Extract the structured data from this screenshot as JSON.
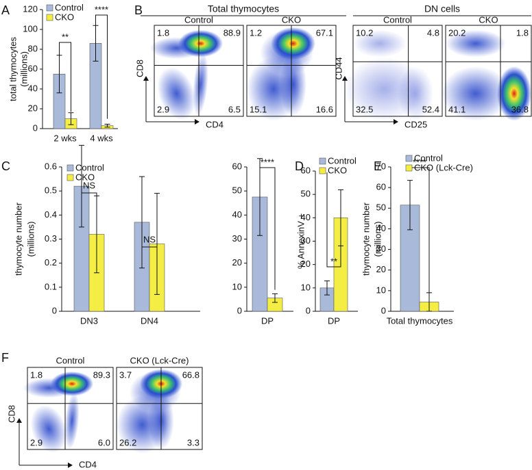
{
  "panels": [
    "A",
    "B",
    "C",
    "D",
    "E",
    "F"
  ],
  "chart_data": [
    {
      "type": "bar",
      "ylabel": [
        "total thymocytes",
        "(millions)"
      ],
      "categories": [
        "2 wks",
        "4 wks"
      ],
      "series": [
        {
          "name": "Control",
          "color": "#a9b9da",
          "values": [
            55,
            86
          ],
          "errors": [
            19,
            18
          ]
        },
        {
          "name": "CKO",
          "color": "#f4ee44",
          "values": [
            10,
            3
          ],
          "errors": [
            6,
            1.5
          ]
        }
      ],
      "ylim": [
        0,
        120
      ],
      "yticks": [
        0,
        20,
        40,
        60,
        80,
        100,
        120
      ],
      "annotations": [
        "**",
        "****"
      ]
    },
    {
      "type": "bar",
      "ylabel": [
        "thymocyte number",
        "(millions)"
      ],
      "categories": [
        "DN3",
        "DN4"
      ],
      "series": [
        {
          "name": "Control",
          "color": "#a9b9da",
          "values": [
            0.52,
            0.37
          ],
          "errors": [
            0.17,
            0.19
          ]
        },
        {
          "name": "CKO",
          "color": "#f4ee44",
          "values": [
            0.32,
            0.28
          ],
          "errors": [
            0.16,
            0.21
          ]
        }
      ],
      "ylim": [
        0,
        0.6
      ],
      "yticks": [
        0,
        0.1,
        0.2,
        0.3,
        0.4,
        0.5,
        0.6
      ],
      "annotations": [
        "NS",
        "NS"
      ]
    },
    {
      "type": "bar",
      "categories": [
        "DP"
      ],
      "series": [
        {
          "color": "#a9b9da",
          "values": [
            47.5
          ],
          "errors": [
            16
          ]
        },
        {
          "color": "#f4ee44",
          "values": [
            5.5
          ],
          "errors": [
            1.8
          ]
        }
      ],
      "ylim": [
        0,
        60
      ],
      "yticks": [
        0,
        10,
        20,
        30,
        40,
        50,
        60
      ],
      "annotations": [
        "****"
      ]
    },
    {
      "type": "bar",
      "ylabel": [
        "% AnnexinV +"
      ],
      "categories": [
        "DP"
      ],
      "series": [
        {
          "name": "Control",
          "color": "#a9b9da",
          "values": [
            10
          ],
          "errors": [
            3
          ]
        },
        {
          "name": "CKO",
          "color": "#f4ee44",
          "values": [
            40
          ],
          "errors": [
            12
          ]
        }
      ],
      "ylim": [
        0,
        60
      ],
      "yticks": [
        0,
        10,
        20,
        30,
        40,
        50,
        60
      ],
      "annotations": [
        "**"
      ]
    },
    {
      "type": "bar",
      "ylabel": [
        "thymocyte number",
        "(millions)"
      ],
      "categories": [
        "Total thymocytes"
      ],
      "series": [
        {
          "name": "Control",
          "color": "#a9b9da",
          "values": [
            51.5
          ],
          "errors": [
            12
          ]
        },
        {
          "name": "CKO (Lck-Cre)",
          "color": "#f4ee44",
          "values": [
            4.5
          ],
          "errors": [
            4.5
          ]
        }
      ],
      "ylim": [
        0,
        70
      ],
      "yticks": [
        0,
        10,
        20,
        30,
        40,
        50,
        60,
        70
      ],
      "annotations": [
        "****"
      ]
    }
  ],
  "flow": [
    {
      "title": "Total thymocytes",
      "xaxis": "CD4",
      "yaxis": "CD8",
      "plots": [
        {
          "label": "Control",
          "quadrants": [
            "1.8",
            "88.9",
            "2.9",
            "6.5"
          ]
        },
        {
          "label": "CKO",
          "quadrants": [
            "1.2",
            "67.1",
            "15.1",
            "16.6"
          ]
        }
      ]
    },
    {
      "title": "DN cells",
      "xaxis": "CD25",
      "yaxis": "CD44",
      "plots": [
        {
          "label": "Control",
          "quadrants": [
            "10.2",
            "4.8",
            "32.5",
            "52.4"
          ]
        },
        {
          "label": "CKO",
          "quadrants": [
            "20.2",
            "1.8",
            "41.1",
            "36.8"
          ]
        }
      ]
    },
    {
      "xaxis": "CD4",
      "yaxis": "CD8",
      "plots": [
        {
          "label": "Control",
          "quadrants": [
            "1.8",
            "89.3",
            "2.9",
            "6.0"
          ]
        },
        {
          "label": "CKO (Lck-Cre)",
          "quadrants": [
            "3.7",
            "66.8",
            "26.2",
            "3.3"
          ]
        }
      ]
    }
  ]
}
